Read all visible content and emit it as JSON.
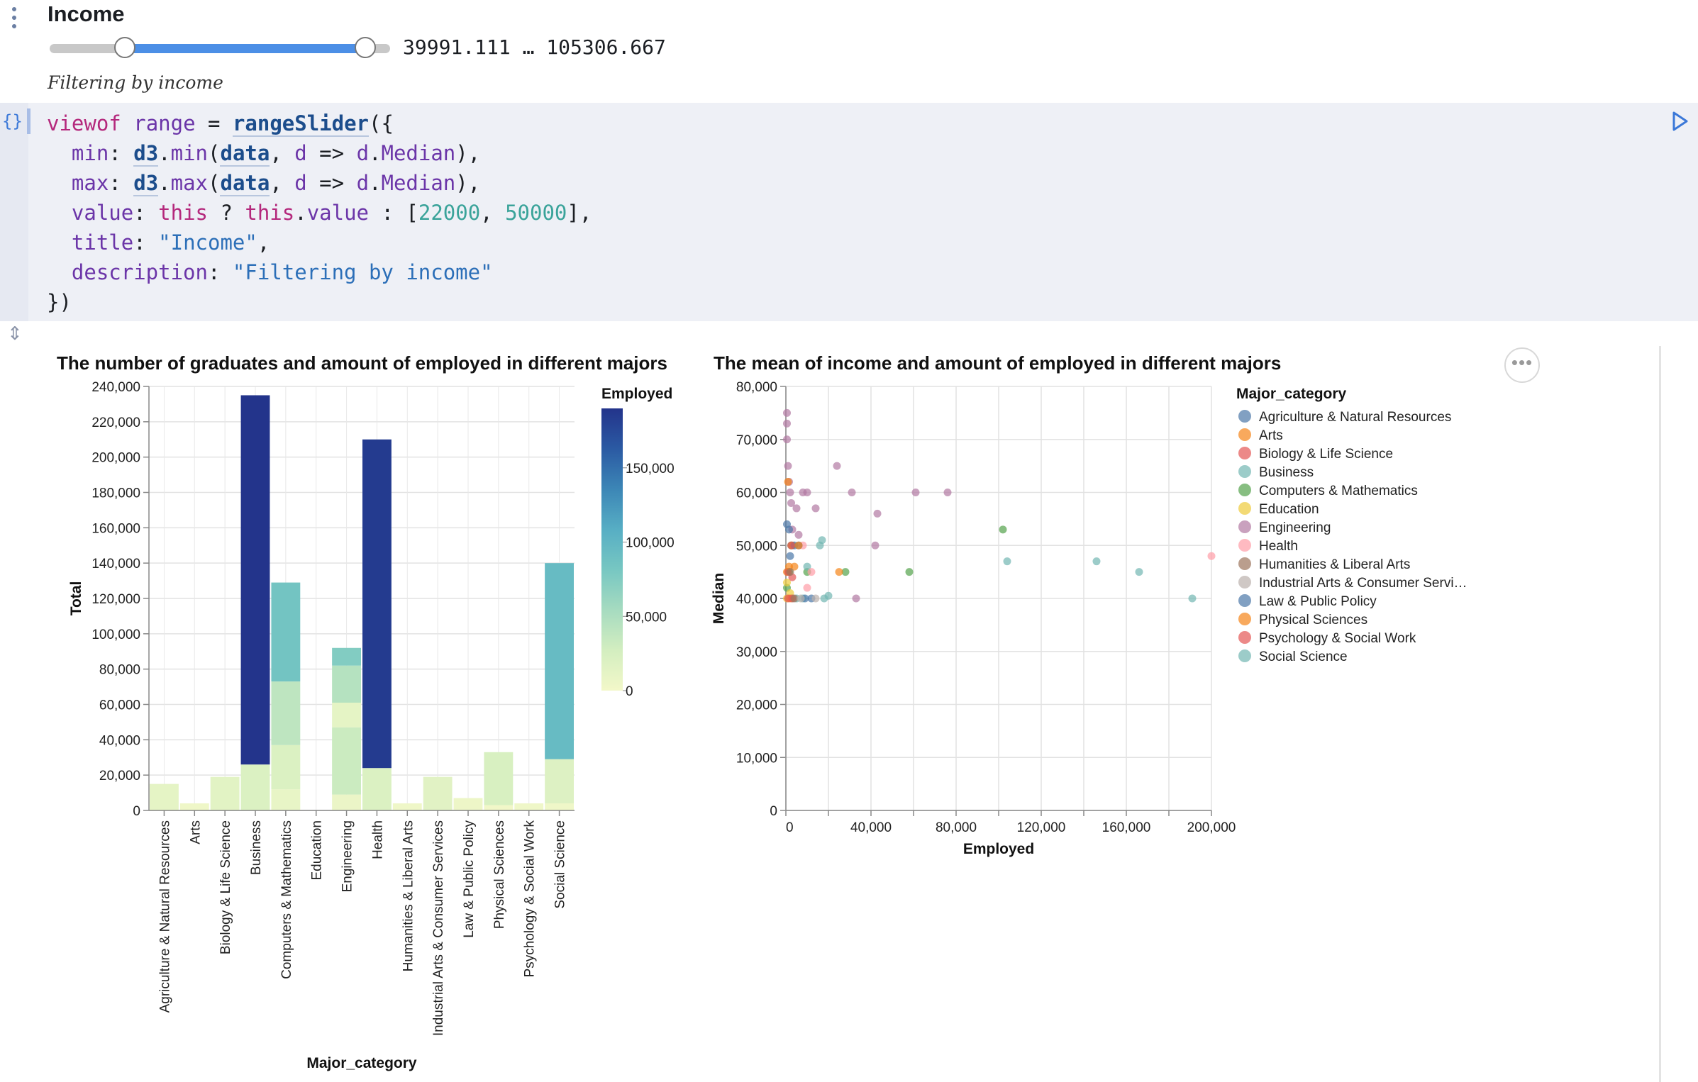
{
  "slider": {
    "title": "Income",
    "value_text": "39991.111 … 105306.667",
    "description": "Filtering by income",
    "low": 39991.111,
    "high": 105306.667
  },
  "code": {
    "lines": [
      "viewof range = rangeSlider({",
      "  min: d3.min(data, d => d.Median),",
      "  max: d3.max(data, d => d.Median),",
      "  value: this ? this.value : [22000, 50000],",
      "  title: \"Income\",",
      "  description: \"Filtering by income\"",
      "})"
    ]
  },
  "icons": {
    "cell_menu": "vertical-dots-icon",
    "code_type": "braces-icon",
    "run": "run-triangle-icon",
    "collapse": "collapse-arrows-icon",
    "more": "more-horizontal-icon"
  },
  "chart_data": [
    {
      "type": "bar",
      "title": "The number of graduates and amount of employed in different majors",
      "xlabel": "Major_category",
      "ylabel": "Total",
      "ylim": [
        0,
        240000
      ],
      "yticks": [
        0,
        20000,
        40000,
        60000,
        80000,
        100000,
        120000,
        140000,
        160000,
        180000,
        200000,
        220000,
        240000
      ],
      "ytick_labels": [
        "0",
        "20,000",
        "40,000",
        "60,000",
        "80,000",
        "100,000",
        "120,000",
        "140,000",
        "160,000",
        "180,000",
        "200,000",
        "220,000",
        "240,000"
      ],
      "categories": [
        "Agriculture & Natural Resources",
        "Arts",
        "Biology & Life Science",
        "Business",
        "Computers & Mathematics",
        "Education",
        "Engineering",
        "Health",
        "Humanities & Liberal Arts",
        "Industrial Arts & Consumer Services",
        "Law & Public Policy",
        "Physical Sciences",
        "Psychology & Social Work",
        "Social Science"
      ],
      "stacks": [
        [
          {
            "total": 15000,
            "employed": 12000
          }
        ],
        [
          {
            "total": 4000,
            "employed": 3000
          }
        ],
        [
          {
            "total": 19000,
            "employed": 14000
          }
        ],
        [
          {
            "total": 26000,
            "employed": 20000
          },
          {
            "total": 209000,
            "employed": 190000
          }
        ],
        [
          {
            "total": 12000,
            "employed": 9000
          },
          {
            "total": 25000,
            "employed": 20000
          },
          {
            "total": 36000,
            "employed": 40000
          },
          {
            "total": 56000,
            "employed": 85000
          }
        ],
        [],
        [
          {
            "total": 9000,
            "employed": 7000
          },
          {
            "total": 38000,
            "employed": 32000
          },
          {
            "total": 14000,
            "employed": 12000
          },
          {
            "total": 21000,
            "employed": 45000
          },
          {
            "total": 10000,
            "employed": 75000
          }
        ],
        [
          {
            "total": 24000,
            "employed": 20000
          },
          {
            "total": 186000,
            "employed": 185000
          }
        ],
        [
          {
            "total": 4000,
            "employed": 3000
          }
        ],
        [
          {
            "total": 19000,
            "employed": 15000
          }
        ],
        [
          {
            "total": 7000,
            "employed": 5000
          }
        ],
        [
          {
            "total": 3000,
            "employed": 2000
          },
          {
            "total": 30000,
            "employed": 23000
          }
        ],
        [
          {
            "total": 4000,
            "employed": 3000
          }
        ],
        [
          {
            "total": 4000,
            "employed": 3000
          },
          {
            "total": 25000,
            "employed": 19000
          },
          {
            "total": 111000,
            "employed": 95000
          }
        ]
      ],
      "legend": {
        "title": "Employed",
        "position": "right",
        "ticks": [
          0,
          50000,
          100000,
          150000
        ],
        "tick_labels": [
          "0",
          "50,000",
          "100,000",
          "150,000"
        ],
        "max": 190000,
        "colors": [
          "#f3f8c9",
          "#d3eec0",
          "#a6dbc0",
          "#77c7c2",
          "#57aec4",
          "#3c86b6",
          "#2b5aa3",
          "#23348b"
        ]
      },
      "grid": true
    },
    {
      "type": "scatter",
      "title": "The mean of income and amount of employed in different majors",
      "xlabel": "Employed",
      "ylabel": "Median",
      "xlim": [
        0,
        200000
      ],
      "ylim": [
        0,
        80000
      ],
      "xticks": [
        0,
        40000,
        80000,
        120000,
        160000,
        200000
      ],
      "xtick_labels": [
        "0",
        "40,000",
        "80,000",
        "120,000",
        "160,000",
        "200,000"
      ],
      "yticks": [
        0,
        10000,
        20000,
        30000,
        40000,
        50000,
        60000,
        70000,
        80000
      ],
      "ytick_labels": [
        "0",
        "10,000",
        "20,000",
        "30,000",
        "40,000",
        "50,000",
        "60,000",
        "70,000",
        "80,000"
      ],
      "grid": true,
      "legend": {
        "title": "Major_category",
        "position": "right",
        "entries": [
          {
            "name": "Agriculture & Natural Resources",
            "color": "#4c78a8"
          },
          {
            "name": "Arts",
            "color": "#f58518"
          },
          {
            "name": "Biology & Life Science",
            "color": "#e45756"
          },
          {
            "name": "Business",
            "color": "#72b7b2"
          },
          {
            "name": "Computers & Mathematics",
            "color": "#54a24b"
          },
          {
            "name": "Education",
            "color": "#eeca3b"
          },
          {
            "name": "Engineering",
            "color": "#b279a2"
          },
          {
            "name": "Health",
            "color": "#ff9da6"
          },
          {
            "name": "Humanities & Liberal Arts",
            "color": "#9d755d"
          },
          {
            "name": "Industrial Arts & Consumer Servi…",
            "color": "#bab0ac"
          },
          {
            "name": "Law & Public Policy",
            "color": "#4c78a8"
          },
          {
            "name": "Physical Sciences",
            "color": "#f58518"
          },
          {
            "name": "Psychology & Social Work",
            "color": "#e45756"
          },
          {
            "name": "Social Science",
            "color": "#72b7b2"
          }
        ]
      },
      "series": [
        {
          "category": "Engineering",
          "points": [
            [
              500,
              75000
            ],
            [
              500,
              73000
            ],
            [
              500,
              70000
            ],
            [
              1000,
              65000
            ],
            [
              1500,
              62000
            ],
            [
              2000,
              60000
            ],
            [
              2500,
              58000
            ],
            [
              5000,
              57000
            ],
            [
              8000,
              60000
            ],
            [
              10000,
              60000
            ],
            [
              6000,
              52000
            ],
            [
              24000,
              65000
            ],
            [
              14000,
              57000
            ],
            [
              31000,
              60000
            ],
            [
              43000,
              56000
            ],
            [
              61000,
              60000
            ],
            [
              76000,
              60000
            ],
            [
              42000,
              50000
            ],
            [
              33000,
              40000
            ],
            [
              3000,
              53000
            ]
          ]
        },
        {
          "category": "Computers & Mathematics",
          "points": [
            [
              500,
              42000
            ],
            [
              1500,
              45000
            ],
            [
              2500,
              50000
            ],
            [
              10000,
              45000
            ],
            [
              28000,
              45000
            ],
            [
              58000,
              45000
            ],
            [
              102000,
              53000
            ]
          ]
        },
        {
          "category": "Business",
          "points": [
            [
              10000,
              46000
            ],
            [
              17000,
              51000
            ],
            [
              18000,
              40000
            ],
            [
              20000,
              40500
            ],
            [
              104000,
              47000
            ],
            [
              146000,
              47000
            ],
            [
              166000,
              45000
            ],
            [
              8000,
              40000
            ]
          ]
        },
        {
          "category": "Social Science",
          "points": [
            [
              191000,
              40000
            ],
            [
              16000,
              50000
            ],
            [
              3000,
              40000
            ],
            [
              5000,
              40000
            ]
          ]
        },
        {
          "category": "Health",
          "points": [
            [
              12000,
              45000
            ],
            [
              200000,
              48000
            ],
            [
              8000,
              50000
            ],
            [
              10000,
              42000
            ]
          ]
        },
        {
          "category": "Arts",
          "points": [
            [
              1000,
              62000
            ],
            [
              500,
              45000
            ],
            [
              3000,
              50000
            ],
            [
              25000,
              45000
            ],
            [
              4000,
              46000
            ]
          ]
        },
        {
          "category": "Agriculture & Natural Resources",
          "points": [
            [
              500,
              54000
            ],
            [
              1500,
              53000
            ],
            [
              4000,
              50000
            ]
          ]
        },
        {
          "category": "Law & Public Policy",
          "points": [
            [
              6000,
              50000
            ],
            [
              12000,
              40000
            ],
            [
              2000,
              48000
            ],
            [
              9000,
              40000
            ]
          ]
        },
        {
          "category": "Biology & Life Science",
          "points": [
            [
              1000,
              45000
            ],
            [
              2500,
              50000
            ],
            [
              3000,
              44000
            ]
          ]
        },
        {
          "category": "Education",
          "points": [
            [
              500,
              43000
            ],
            [
              2000,
              41000
            ],
            [
              500,
              40000
            ]
          ]
        },
        {
          "category": "Physical Sciences",
          "points": [
            [
              2000,
              40000
            ],
            [
              6000,
              50000
            ],
            [
              1500,
              46000
            ]
          ]
        },
        {
          "category": "Psychology & Social Work",
          "points": [
            [
              1000,
              40000
            ],
            [
              3000,
              40000
            ]
          ]
        },
        {
          "category": "Humanities & Liberal Arts",
          "points": [
            [
              2000,
              45000
            ],
            [
              4000,
              40000
            ]
          ]
        },
        {
          "category": "Industrial Arts & Consumer Servi…",
          "points": [
            [
              7000,
              40000
            ],
            [
              14000,
              40000
            ]
          ]
        }
      ]
    }
  ]
}
